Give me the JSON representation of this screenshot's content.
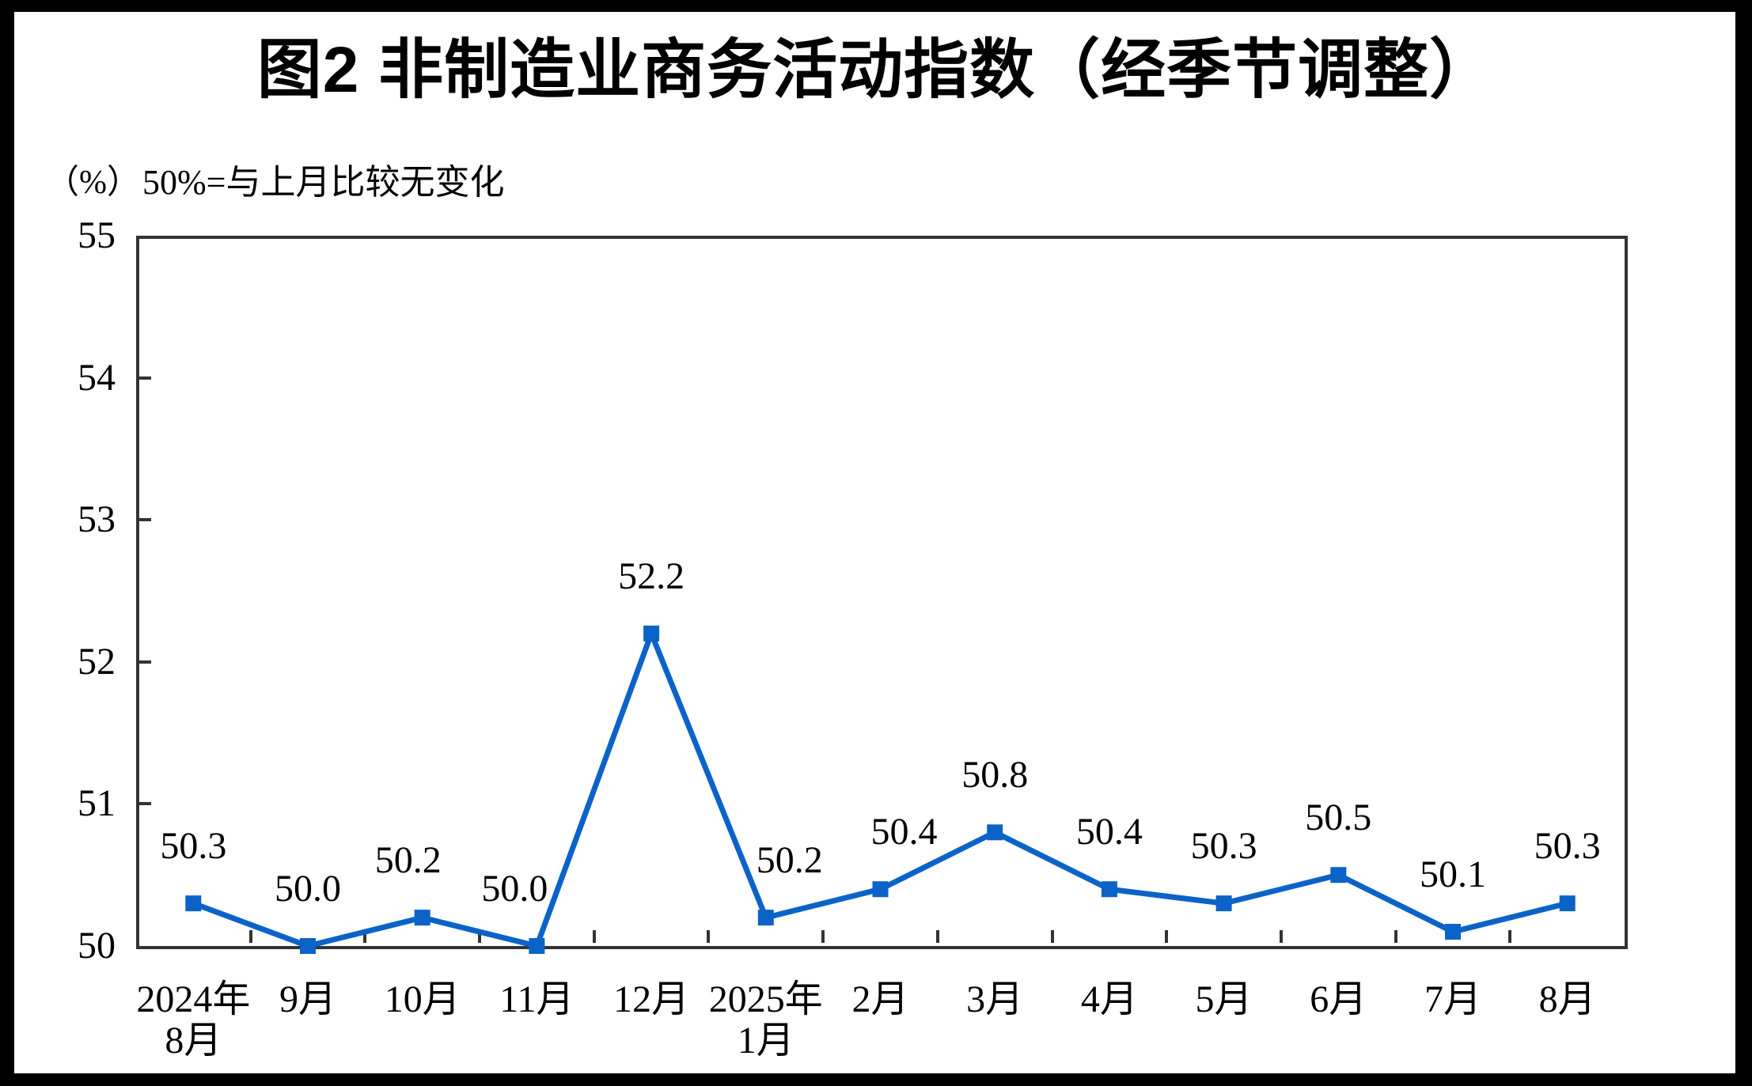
{
  "title": "图2 非制造业商务活动指数（经季节调整）",
  "y_axis": {
    "unit_label": "（%）",
    "note": "50%=与上月比较无变化",
    "tick_labels": [
      "55",
      "54",
      "53",
      "52",
      "51",
      "50"
    ]
  },
  "chart_data": {
    "type": "line",
    "title": "图2 非制造业商务活动指数（经季节调整）",
    "categories": [
      "2024年8月",
      "9月",
      "10月",
      "11月",
      "12月",
      "2025年1月",
      "2月",
      "3月",
      "4月",
      "5月",
      "6月",
      "7月",
      "8月"
    ],
    "category_lines": [
      [
        "2024年",
        "8月"
      ],
      [
        "9月"
      ],
      [
        "10月"
      ],
      [
        "11月"
      ],
      [
        "12月"
      ],
      [
        "2025年",
        "1月"
      ],
      [
        "2月"
      ],
      [
        "3月"
      ],
      [
        "4月"
      ],
      [
        "5月"
      ],
      [
        "6月"
      ],
      [
        "7月"
      ],
      [
        "8月"
      ]
    ],
    "series": [
      {
        "name": "非制造业商务活动指数（经季节调整）",
        "values": [
          50.3,
          50.0,
          50.2,
          50.0,
          52.2,
          50.2,
          50.4,
          50.8,
          50.4,
          50.3,
          50.5,
          50.1,
          50.3
        ]
      }
    ],
    "data_labels": [
      "50.3",
      "50.0",
      "50.2",
      "50.0",
      "52.2",
      "50.2",
      "50.4",
      "50.8",
      "50.4",
      "50.3",
      "50.5",
      "50.1",
      "50.3"
    ],
    "ylim": [
      50,
      55
    ],
    "ytick_step": 1,
    "ylabel": "%",
    "grid": false,
    "legend": "none",
    "line_color": "#0b63c8",
    "axis_color": "#333333"
  }
}
